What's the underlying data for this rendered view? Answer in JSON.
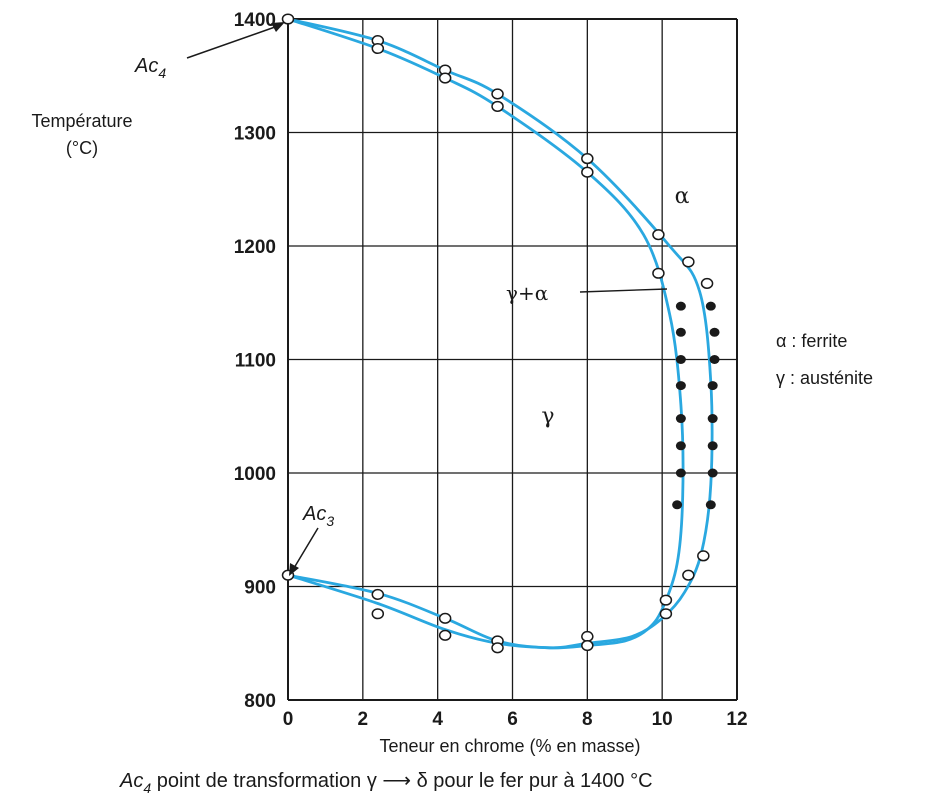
{
  "chart_data": {
    "type": "line",
    "xlabel": "Teneur en chrome (% en masse)",
    "ylabel_line1": "Température",
    "ylabel_line2": "(°C)",
    "xlim": [
      0,
      12
    ],
    "ylim": [
      800,
      1400
    ],
    "x_ticks": [
      "0",
      "2",
      "4",
      "6",
      "8",
      "10",
      "12"
    ],
    "y_ticks": [
      "800",
      "900",
      "1000",
      "1100",
      "1200",
      "1300",
      "1400"
    ],
    "grid": true,
    "series": [
      {
        "curve_style": "smooth",
        "points": [
          [
            0,
            1400
          ],
          [
            2.4,
            1374
          ],
          [
            4.2,
            1348
          ],
          [
            5.6,
            1323
          ],
          [
            8,
            1265
          ],
          [
            9.5,
            1210
          ],
          [
            10.2,
            1140
          ],
          [
            10.5,
            1060
          ],
          [
            10.55,
            980
          ],
          [
            10.4,
            920
          ],
          [
            10.0,
            880
          ],
          [
            9.6,
            862
          ],
          [
            9.0,
            852
          ],
          [
            8.0,
            848
          ],
          [
            7.0,
            846
          ],
          [
            5.6,
            850
          ],
          [
            4.2,
            862
          ],
          [
            2.4,
            885
          ],
          [
            0,
            910
          ]
        ]
      },
      {
        "curve_style": "smooth",
        "points": [
          [
            0,
            1400
          ],
          [
            2.4,
            1381
          ],
          [
            4.2,
            1355
          ],
          [
            5.6,
            1334
          ],
          [
            8,
            1277
          ],
          [
            10.2,
            1200
          ],
          [
            11.0,
            1160
          ],
          [
            11.3,
            1080
          ],
          [
            11.3,
            990
          ],
          [
            11.05,
            930
          ],
          [
            10.6,
            895
          ],
          [
            10.0,
            872
          ],
          [
            9.2,
            856
          ],
          [
            8.0,
            850
          ],
          [
            7.0,
            846
          ],
          [
            5.6,
            852
          ],
          [
            4.2,
            872
          ],
          [
            2.4,
            894
          ],
          [
            0,
            910
          ]
        ]
      }
    ],
    "open_points": [
      [
        0,
        1400
      ],
      [
        2.4,
        1381
      ],
      [
        2.4,
        1374
      ],
      [
        4.2,
        1355
      ],
      [
        4.2,
        1348
      ],
      [
        5.6,
        1334
      ],
      [
        5.6,
        1323
      ],
      [
        8,
        1277
      ],
      [
        8,
        1265
      ],
      [
        9.9,
        1210
      ],
      [
        10.7,
        1186
      ],
      [
        11.2,
        1167
      ],
      [
        9.9,
        1176
      ],
      [
        0,
        910
      ],
      [
        2.4,
        893
      ],
      [
        2.4,
        876
      ],
      [
        4.2,
        872
      ],
      [
        4.2,
        857
      ],
      [
        5.6,
        852
      ],
      [
        5.6,
        846
      ],
      [
        8,
        856
      ],
      [
        8,
        848
      ],
      [
        10.1,
        888
      ],
      [
        10.1,
        876
      ],
      [
        10.7,
        910
      ],
      [
        11.1,
        927
      ]
    ],
    "filled_points": [
      [
        10.5,
        1147
      ],
      [
        11.3,
        1147
      ],
      [
        10.5,
        1124
      ],
      [
        11.4,
        1124
      ],
      [
        10.5,
        1100
      ],
      [
        11.4,
        1100
      ],
      [
        10.5,
        1077
      ],
      [
        11.35,
        1077
      ],
      [
        10.5,
        1048
      ],
      [
        11.35,
        1048
      ],
      [
        10.5,
        1024
      ],
      [
        11.35,
        1024
      ],
      [
        10.5,
        1000
      ],
      [
        11.35,
        1000
      ],
      [
        10.4,
        972
      ],
      [
        11.3,
        972
      ]
    ],
    "annotations": {
      "ac4_main": "Ac",
      "ac4_sub": "4",
      "ac3_main": "Ac",
      "ac3_sub": "3",
      "alpha": "α",
      "gamma": "γ",
      "gamma_alpha": "γ+α"
    }
  },
  "legend": {
    "alpha": "α : ferrite",
    "gamma": "γ : austénite"
  },
  "caption": {
    "main": "Ac",
    "sub": "4",
    "rest": " point de transformation γ ⟶ δ pour le fer pur à 1400 °C"
  },
  "colors": {
    "curve": "#2aa8e0",
    "grid": "#1a1a1a",
    "marker": "#1a1a1a"
  }
}
